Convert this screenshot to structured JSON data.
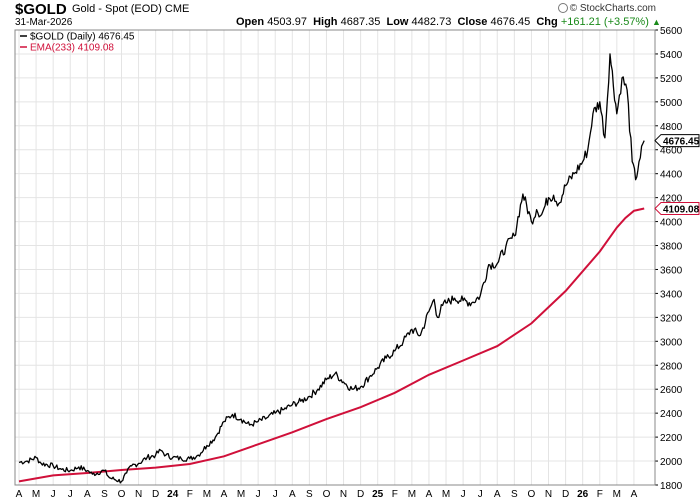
{
  "header": {
    "symbol": "$GOLD",
    "name": "Gold - Spot (EOD)",
    "exchange": "CME",
    "date": "31-Mar-2026",
    "open_label": "Open",
    "open_value": "4503.97",
    "high_label": "High",
    "high_value": "4687.35",
    "low_label": "Low",
    "low_value": "4482.73",
    "close_label": "Close",
    "close_value": "4676.45",
    "chg_label": "Chg",
    "chg_value": "+161.21 (+3.57%)",
    "credit": "© StockCharts.com"
  },
  "legend": {
    "price": "$GOLD (Daily) 4676.45",
    "ema": "EMA(233) 4109.08"
  },
  "colors": {
    "price": "#000000",
    "ema": "#d0103a",
    "grid": "#e4e4e4",
    "change": "#1a8a1a"
  },
  "chart_data": {
    "type": "line",
    "title": "$GOLD Gold - Spot (EOD) CME",
    "ylim": [
      1800,
      5600
    ],
    "y_ticks": [
      1800,
      2000,
      2200,
      2400,
      2600,
      2800,
      3000,
      3200,
      3400,
      3600,
      3800,
      4000,
      4200,
      4400,
      4600,
      4800,
      5000,
      5200,
      5400,
      5600
    ],
    "x_ticks": [
      "A",
      "M",
      "J",
      "J",
      "A",
      "S",
      "O",
      "N",
      "D",
      "24",
      "F",
      "M",
      "A",
      "M",
      "J",
      "J",
      "A",
      "S",
      "O",
      "N",
      "D",
      "25",
      "F",
      "M",
      "A",
      "M",
      "J",
      "J",
      "A",
      "S",
      "O",
      "N",
      "D",
      "26",
      "F",
      "M",
      "A"
    ],
    "x_range_months": [
      0,
      37
    ],
    "last_price_label": "4676.45",
    "last_ema_label": "4109.08",
    "series": [
      {
        "name": "$GOLD (Daily)",
        "t": [
          0,
          0.5,
          1.0,
          1.3,
          2.0,
          2.5,
          3.0,
          3.5,
          4.0,
          4.3,
          5.0,
          5.3,
          6.0,
          6.3,
          6.6,
          7.0,
          7.5,
          8.0,
          8.3,
          8.6,
          9.0,
          9.5,
          10.0,
          10.5,
          11.0,
          11.5,
          12.0,
          12.5,
          13.0,
          13.5,
          14.0,
          14.5,
          15.0,
          15.5,
          16.0,
          16.5,
          17.0,
          17.5,
          18.0,
          18.5,
          19.0,
          19.5,
          20.0,
          20.5,
          21.0,
          21.5,
          22.0,
          22.5,
          23.0,
          23.5,
          24.0,
          24.3,
          24.5,
          24.8,
          25.0,
          25.5,
          26.0,
          26.5,
          27.0,
          27.5,
          28.0,
          28.5,
          29.0,
          29.5,
          30.0,
          30.3,
          30.6,
          31.0,
          31.3,
          31.6,
          32.0,
          32.5,
          33.0,
          33.3,
          33.6,
          34.0,
          34.3,
          34.6,
          35.0,
          35.3,
          35.6,
          35.9,
          36.1,
          36.3,
          36.6
        ],
        "values": [
          1990,
          2000,
          2030,
          1980,
          1960,
          1930,
          1920,
          1950,
          1920,
          1890,
          1920,
          1860,
          1830,
          1900,
          1960,
          1980,
          2030,
          2050,
          2090,
          2050,
          2030,
          2020,
          2020,
          2050,
          2130,
          2200,
          2330,
          2390,
          2350,
          2300,
          2330,
          2360,
          2400,
          2430,
          2470,
          2500,
          2540,
          2600,
          2680,
          2730,
          2660,
          2600,
          2620,
          2700,
          2780,
          2860,
          2920,
          3000,
          3100,
          3050,
          3250,
          3350,
          3200,
          3300,
          3320,
          3360,
          3340,
          3320,
          3380,
          3640,
          3650,
          3790,
          3880,
          4230,
          4000,
          4100,
          4060,
          4200,
          4220,
          4150,
          4300,
          4400,
          4500,
          4600,
          4900,
          5000,
          4700,
          5400,
          4900,
          5200,
          5100,
          4500,
          4350,
          4500,
          4676
        ]
      },
      {
        "name": "EMA(233)",
        "t": [
          0,
          2,
          4,
          6,
          8,
          10,
          12,
          14,
          16,
          18,
          20,
          22,
          24,
          26,
          28,
          30,
          32,
          34,
          35,
          35.5,
          36,
          36.6
        ],
        "values": [
          1830,
          1880,
          1900,
          1925,
          1945,
          1975,
          2040,
          2140,
          2240,
          2350,
          2450,
          2570,
          2720,
          2840,
          2960,
          3150,
          3420,
          3750,
          3950,
          4030,
          4090,
          4109
        ]
      }
    ]
  }
}
